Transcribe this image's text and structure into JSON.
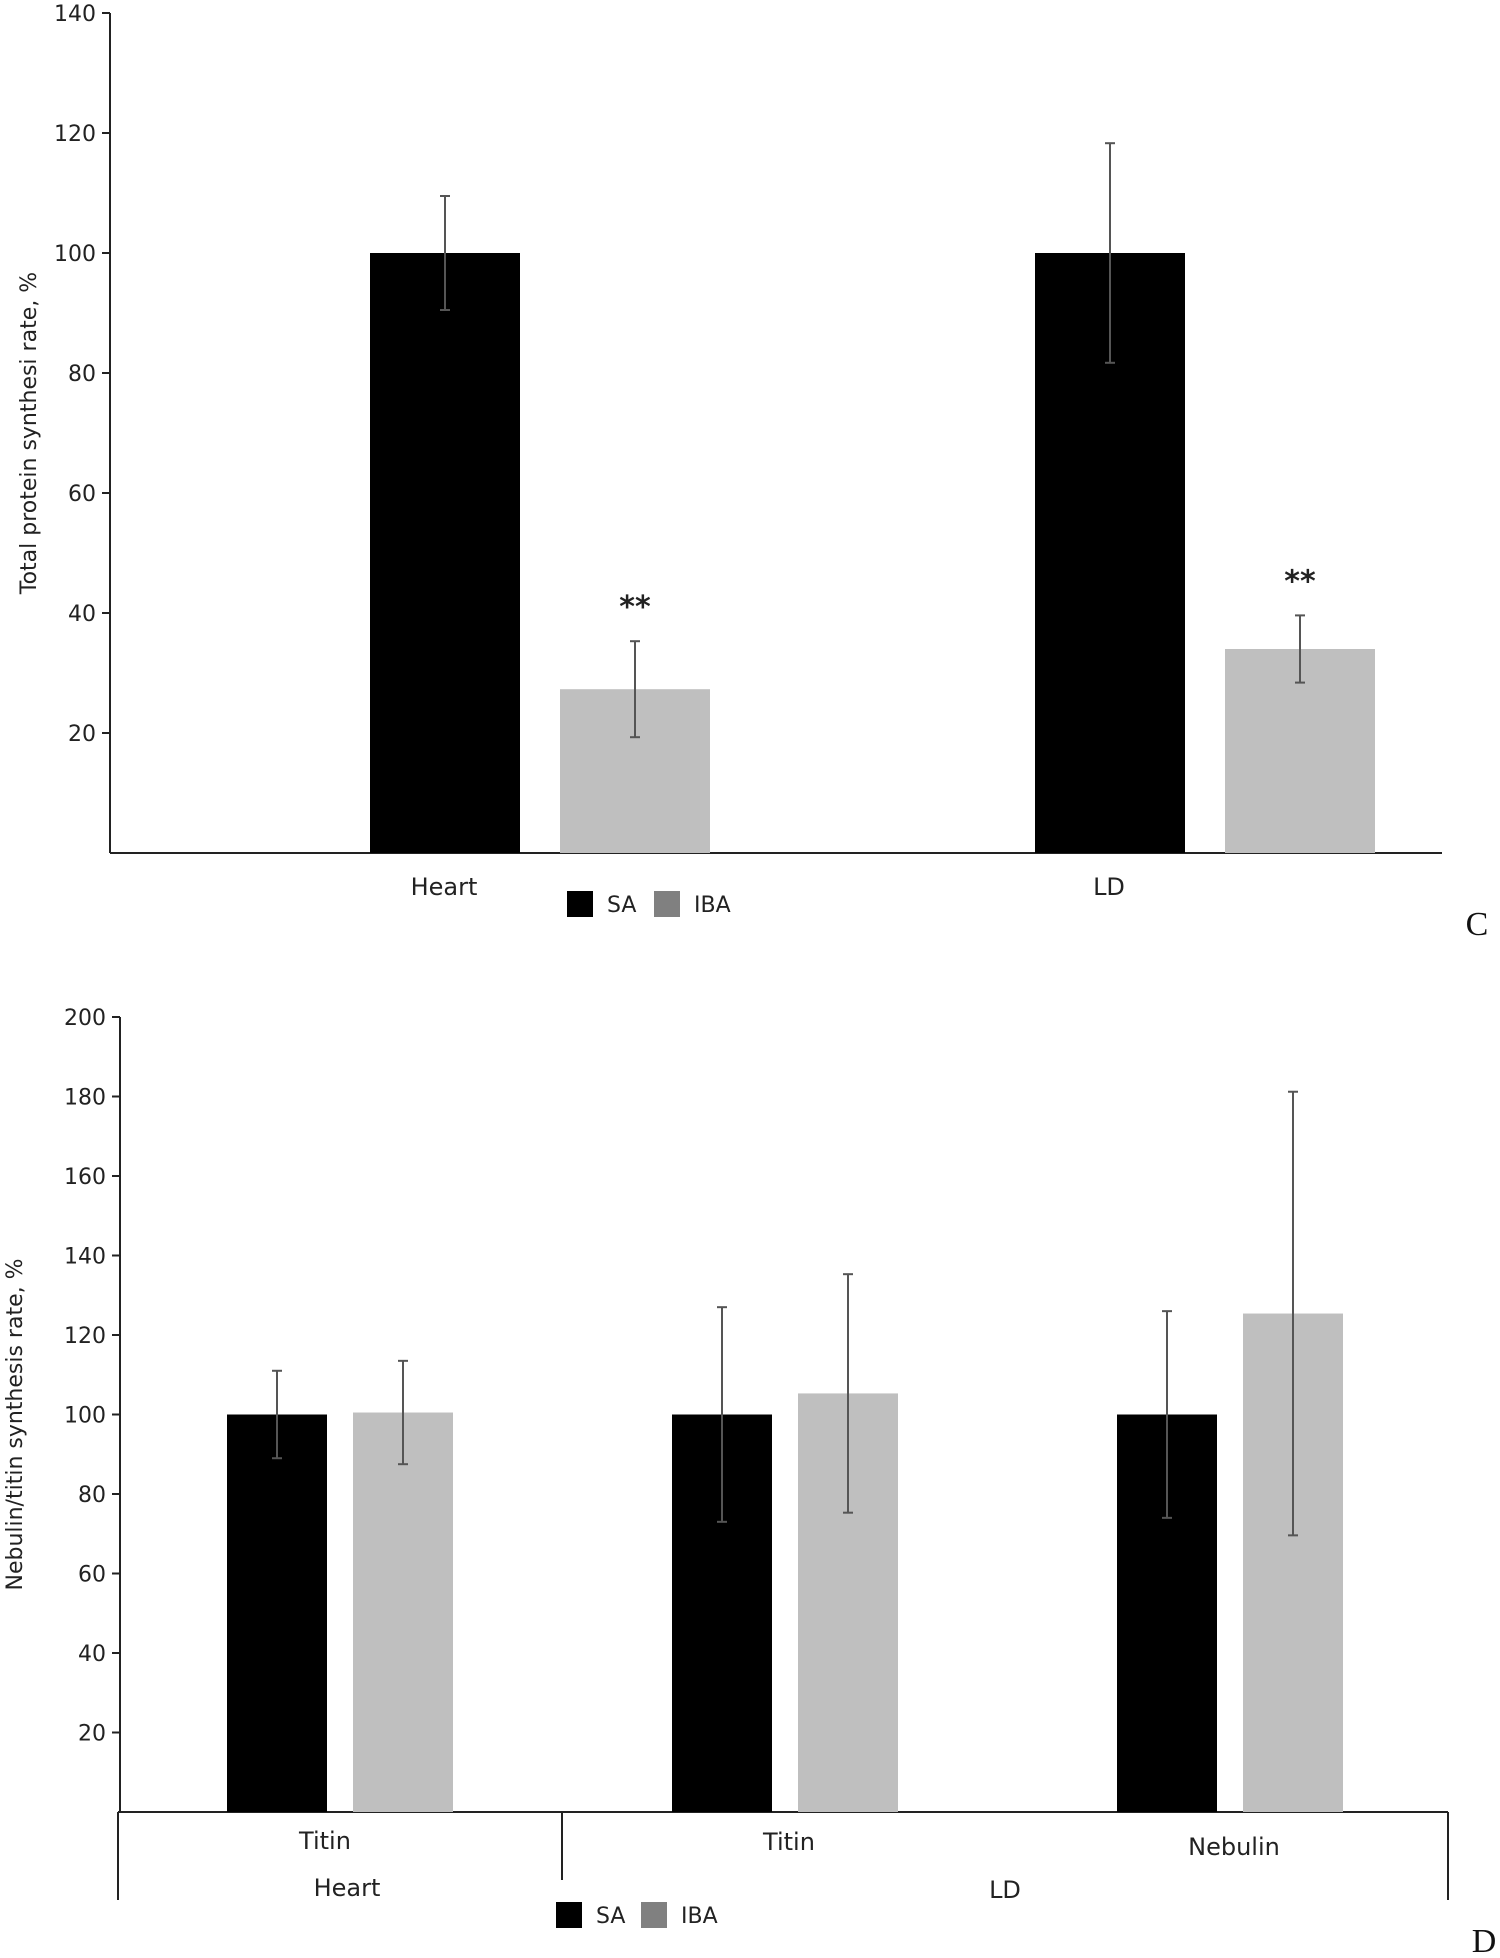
{
  "chart_data": [
    {
      "panel": "C",
      "type": "bar",
      "ylabel": "Total protein synthesi rate, %",
      "ylim": [
        0,
        140
      ],
      "yticks": [
        20,
        40,
        60,
        80,
        100,
        120,
        140
      ],
      "categories": [
        "Heart",
        "LD"
      ],
      "series": [
        {
          "name": "SA",
          "color": "#000000",
          "values": [
            100,
            100
          ],
          "errors": [
            9.5,
            18.3
          ]
        },
        {
          "name": "IBA",
          "color": "#bfbfbf",
          "values": [
            27.3,
            34
          ],
          "errors": [
            8,
            5.6
          ]
        }
      ],
      "annotations": [
        {
          "category": "Heart",
          "series": "IBA",
          "text": "**"
        },
        {
          "category": "LD",
          "series": "IBA",
          "text": "**"
        }
      ],
      "legend": [
        {
          "label": "SA",
          "color": "#000000"
        },
        {
          "label": "IBA",
          "color": "#808080"
        }
      ]
    },
    {
      "panel": "D",
      "type": "bar",
      "ylabel": "Nebulin/titin synthesis rate, %",
      "ylim": [
        0,
        200
      ],
      "yticks": [
        20,
        40,
        60,
        80,
        100,
        120,
        140,
        160,
        180,
        200
      ],
      "categories": [
        "Titin",
        "Titin",
        "Nebulin"
      ],
      "groups": [
        {
          "label": "Heart",
          "span": [
            0,
            0
          ]
        },
        {
          "label": "LD",
          "span": [
            1,
            2
          ]
        }
      ],
      "series": [
        {
          "name": "SA",
          "color": "#000000",
          "values": [
            100,
            100,
            100
          ],
          "errors": [
            11,
            27,
            26
          ]
        },
        {
          "name": "IBA",
          "color": "#bfbfbf",
          "values": [
            100.5,
            105.3,
            125.4
          ],
          "errors": [
            13,
            30,
            55.8
          ]
        }
      ],
      "legend": [
        {
          "label": "SA",
          "color": "#000000"
        },
        {
          "label": "IBA",
          "color": "#808080"
        }
      ]
    }
  ],
  "labels": {
    "panel_c": "C",
    "panel_d": "D"
  }
}
